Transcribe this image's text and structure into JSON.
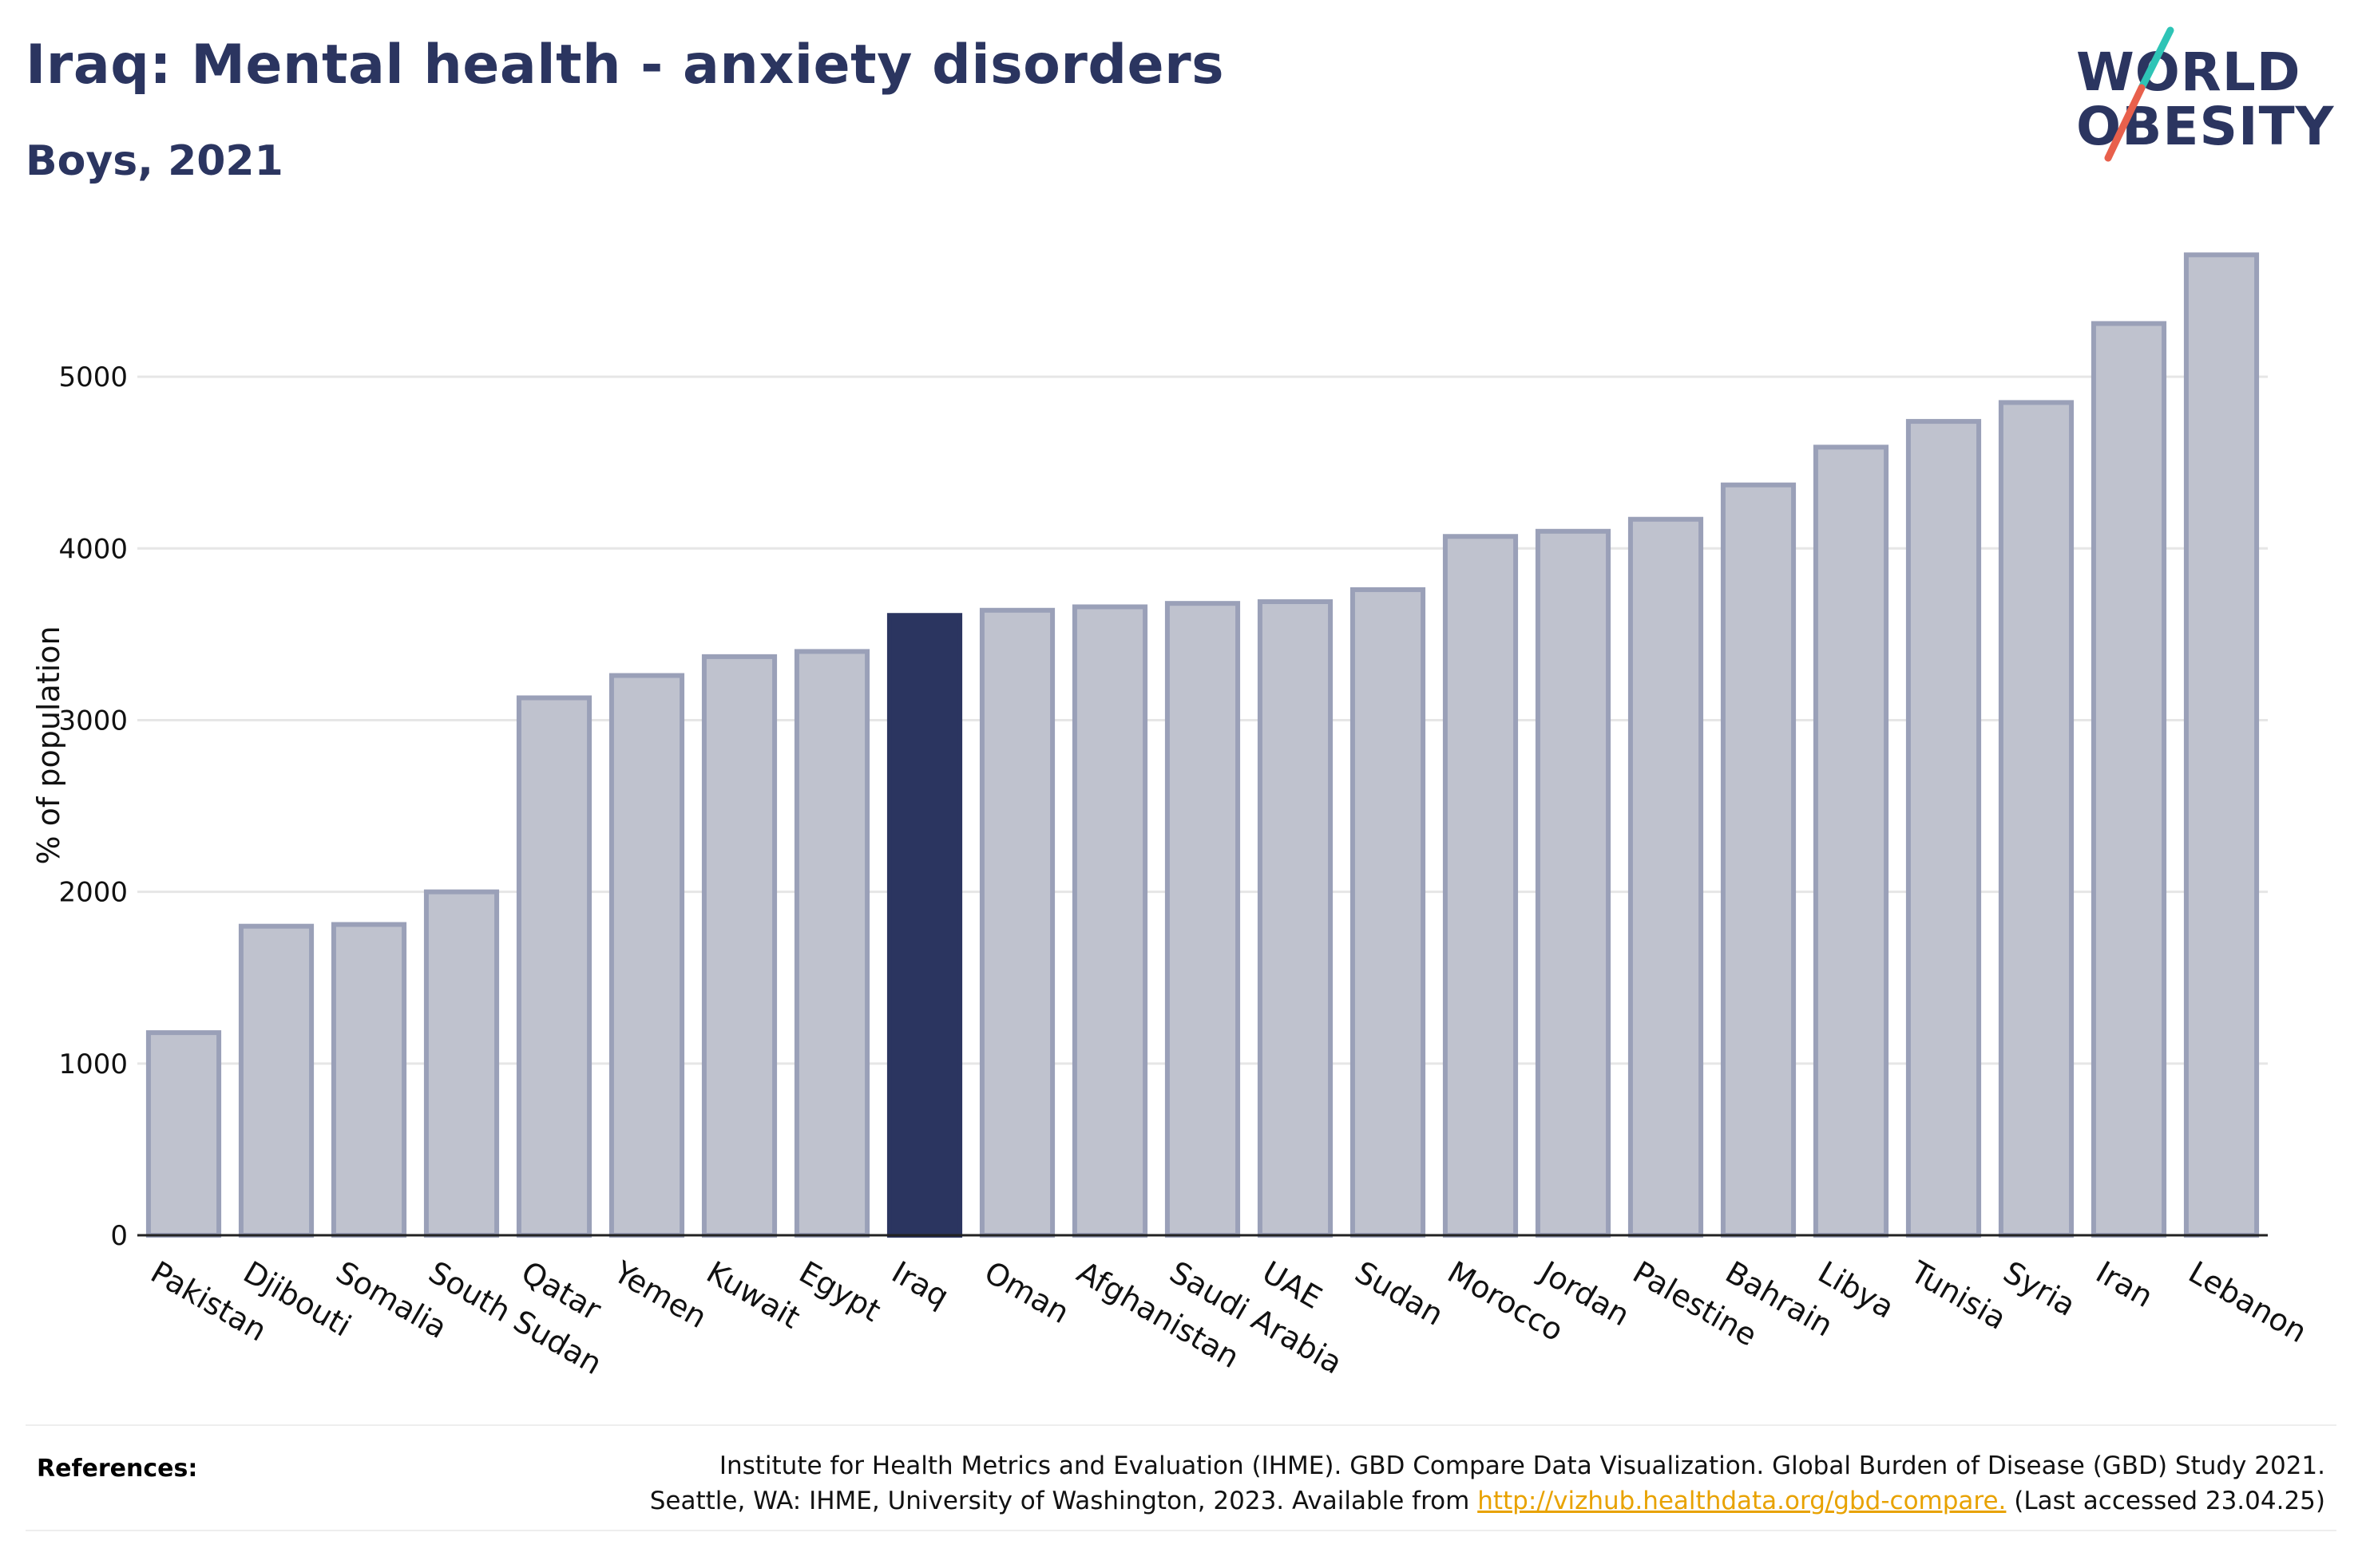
{
  "header": {
    "title": "Iraq: Mental health - anxiety disorders",
    "subtitle": "Boys, 2021"
  },
  "logo": {
    "line1": "WORLD",
    "line2": "OBESITY",
    "accent_colors": [
      "#2ec4b6",
      "#e8604c"
    ]
  },
  "chart_data": {
    "type": "bar",
    "ylabel": "% of population",
    "ylim": [
      0,
      5800
    ],
    "yticks": [
      0,
      1000,
      2000,
      3000,
      4000,
      5000
    ],
    "grid": true,
    "highlight": "Iraq",
    "colors": {
      "bar": "#bfc2ce",
      "bar_edge": "#9aa0b8",
      "highlight": "#2b3560"
    },
    "categories": [
      "Pakistan",
      "Djibouti",
      "Somalia",
      "South Sudan",
      "Qatar",
      "Yemen",
      "Kuwait",
      "Egypt",
      "Iraq",
      "Oman",
      "Afghanistan",
      "Saudi Arabia",
      "UAE",
      "Sudan",
      "Morocco",
      "Jordan",
      "Palestine",
      "Bahrain",
      "Libya",
      "Tunisia",
      "Syria",
      "Iran",
      "Lebanon"
    ],
    "values": [
      1180,
      1800,
      1810,
      2000,
      3130,
      3260,
      3370,
      3400,
      3610,
      3640,
      3660,
      3680,
      3690,
      3760,
      4070,
      4100,
      4170,
      4370,
      4590,
      4740,
      4850,
      5310,
      5710
    ]
  },
  "references": {
    "label": "References:",
    "line1": "Institute for Health Metrics and Evaluation (IHME). GBD Compare Data Visualization. Global Burden of Disease (GBD) Study 2021.",
    "line2_prefix": "Seattle, WA: IHME, University of Washington, 2023. Available from",
    "link": "http://vizhub.healthdata.org/gbd-compare.",
    "line2_suffix": "(Last accessed 23.04.25)"
  }
}
